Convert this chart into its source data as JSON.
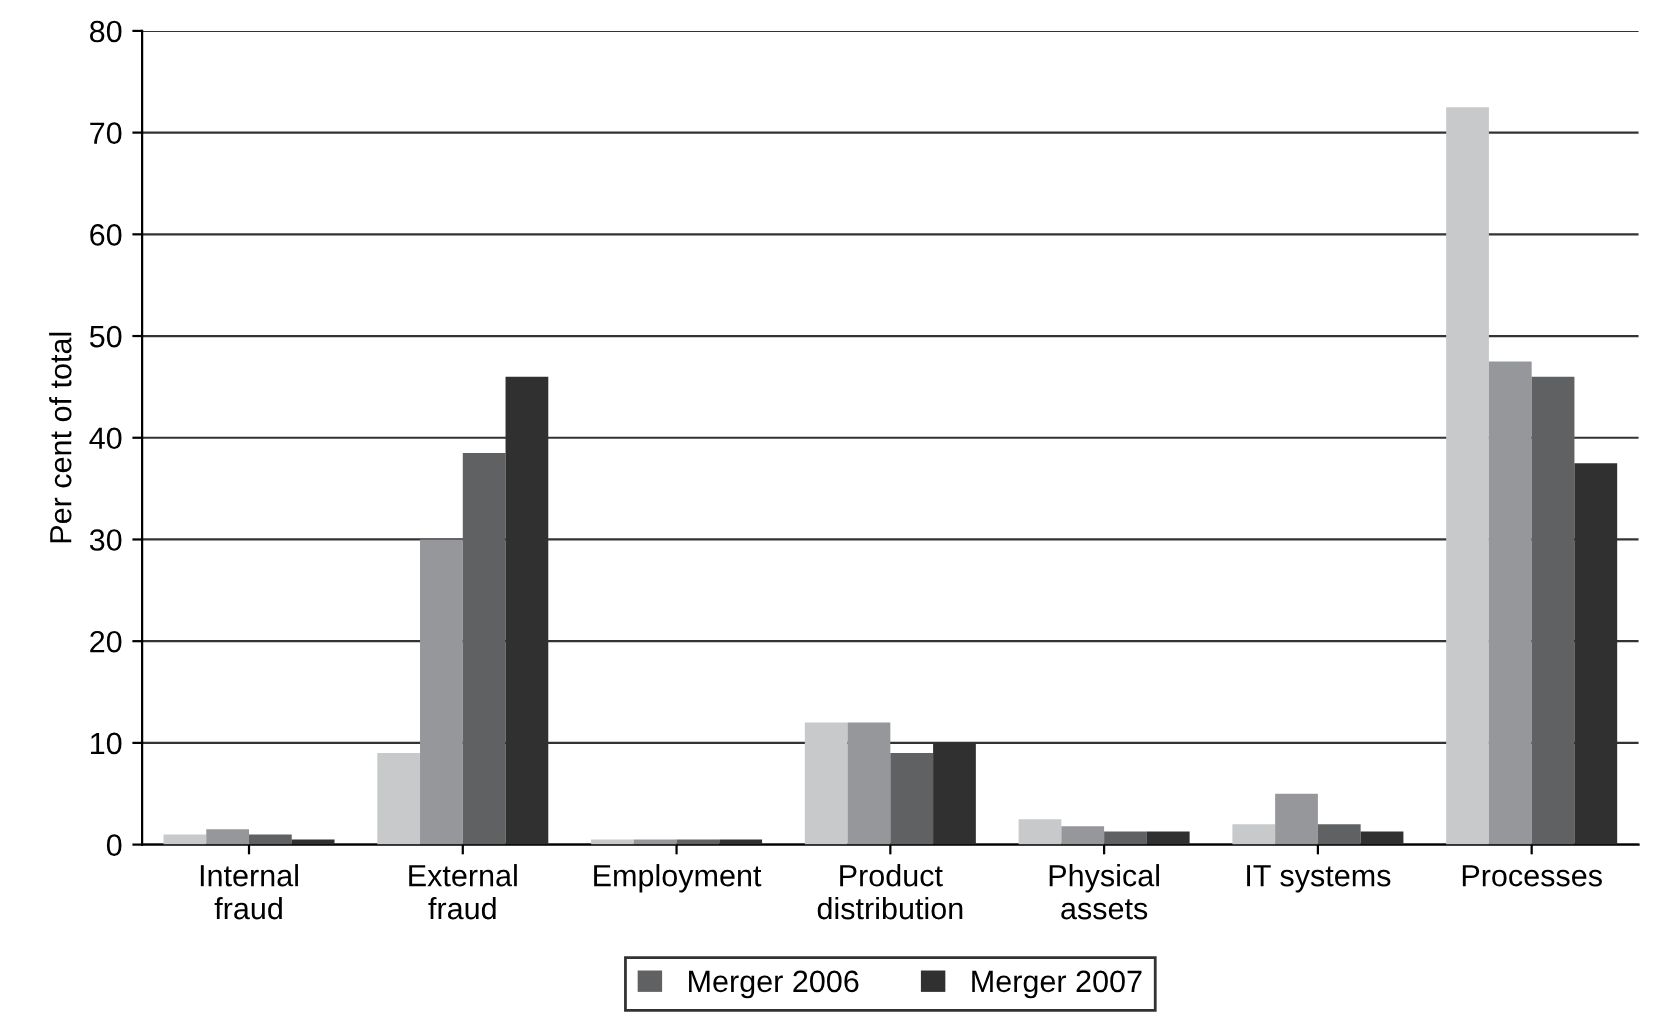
{
  "chart_data": {
    "type": "bar",
    "ylabel": "Per cent of total",
    "categories": [
      "Internal\nfraud",
      "External\nfraud",
      "Employment",
      "Product\ndistribution",
      "Physical\nassets",
      "IT systems",
      "Processes"
    ],
    "series": [
      {
        "name": null,
        "color": "#c8c9cb",
        "values": [
          1,
          9,
          0.5,
          12,
          2.5,
          2,
          72.5
        ]
      },
      {
        "name": null,
        "color": "#96979a",
        "values": [
          1.5,
          30,
          0.5,
          12,
          1.8,
          5,
          47.5
        ]
      },
      {
        "name": "Merger 2006",
        "color": "#606163",
        "values": [
          1,
          38.5,
          0.5,
          9,
          1.3,
          2,
          46
        ]
      },
      {
        "name": "Merger 2007",
        "color": "#303030",
        "values": [
          0.5,
          46,
          0.5,
          10,
          1.3,
          1.3,
          37.5
        ]
      }
    ],
    "ylim": [
      0,
      80
    ],
    "yticks": [
      0,
      10,
      20,
      30,
      40,
      50,
      60,
      70,
      80
    ],
    "grid": "y",
    "legend": "bottom"
  }
}
